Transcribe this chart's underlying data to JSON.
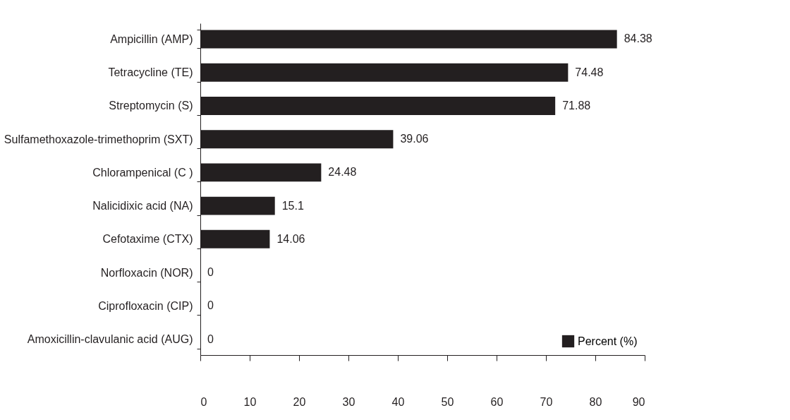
{
  "chart_data": {
    "type": "bar",
    "orientation": "horizontal",
    "categories": [
      "Ampicillin (AMP)",
      "Tetracycline (TE)",
      "Streptomycin (S)",
      "Sulfamethoxazole-trimethoprim (SXT)",
      "Chlorampenical (C )",
      "Nalicidixic acid (NA)",
      "Cefotaxime (CTX)",
      "Norfloxacin (NOR)",
      "Ciprofloxacin (CIP)",
      "Amoxicillin-clavulanic acid (AUG)"
    ],
    "series": [
      {
        "name": "Percent (%)",
        "color": "#231f20",
        "values": [
          84.38,
          74.48,
          71.88,
          39.06,
          24.48,
          15.1,
          14.06,
          0,
          0,
          0
        ]
      }
    ],
    "xlim": [
      0,
      90
    ],
    "xticks": [
      0,
      10,
      20,
      30,
      40,
      50,
      60,
      70,
      80,
      90
    ],
    "data_labels": true,
    "grid": false,
    "legend": "bottom right"
  }
}
